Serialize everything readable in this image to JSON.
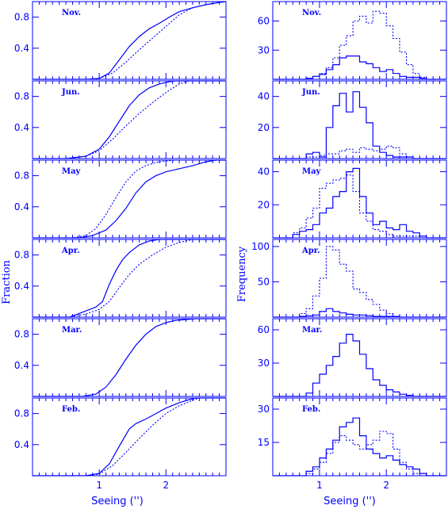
{
  "figure": {
    "colors": {
      "axis": "#0000ff",
      "series": "#0000ff",
      "background": "#ffffff"
    },
    "left_ylabel": "Fraction",
    "right_ylabel": "Frequency",
    "left_xlabel": "Seeing ('')",
    "right_xlabel": "Seeing ('')"
  },
  "chart_data": [
    {
      "type": "line",
      "panel": "Nov.",
      "column": "left",
      "xlim": [
        0,
        2.9
      ],
      "ylim": [
        0,
        1.0
      ],
      "yticks": [
        0.4,
        0.8
      ],
      "ytick_labels": [
        "0.4",
        "0.8"
      ],
      "xticks": [
        1,
        2
      ],
      "xtick_labels": [
        "",
        ""
      ],
      "series": [
        {
          "style": "solid",
          "x": [
            0.8,
            1.0,
            1.15,
            1.3,
            1.45,
            1.6,
            1.75,
            1.9,
            2.05,
            2.2,
            2.4,
            2.6,
            2.8,
            2.9
          ],
          "y": [
            0,
            0.01,
            0.08,
            0.25,
            0.42,
            0.55,
            0.65,
            0.72,
            0.8,
            0.87,
            0.92,
            0.96,
            0.99,
            1.0
          ]
        },
        {
          "style": "dotted",
          "x": [
            0.8,
            1.0,
            1.2,
            1.4,
            1.6,
            1.8,
            2.0,
            2.2,
            2.4,
            2.6,
            2.8,
            2.9
          ],
          "y": [
            0,
            0.01,
            0.08,
            0.22,
            0.38,
            0.53,
            0.68,
            0.83,
            0.92,
            0.96,
            0.99,
            1.0
          ]
        }
      ]
    },
    {
      "type": "line",
      "panel": "Jun.",
      "column": "left",
      "xlim": [
        0,
        2.9
      ],
      "ylim": [
        0,
        1.0
      ],
      "yticks": [
        0.4,
        0.8
      ],
      "ytick_labels": [
        "0.4",
        "0.8"
      ],
      "xticks": [
        1,
        2
      ],
      "xtick_labels": [
        "",
        ""
      ],
      "series": [
        {
          "style": "solid",
          "x": [
            0.5,
            0.8,
            1.0,
            1.15,
            1.3,
            1.45,
            1.6,
            1.75,
            1.9,
            2.05,
            2.15
          ],
          "y": [
            0,
            0.03,
            0.12,
            0.28,
            0.48,
            0.68,
            0.82,
            0.91,
            0.96,
            0.99,
            1.0
          ]
        },
        {
          "style": "dotted",
          "x": [
            0.5,
            0.8,
            1.0,
            1.2,
            1.4,
            1.6,
            1.8,
            2.0,
            2.2,
            2.35
          ],
          "y": [
            0,
            0.03,
            0.1,
            0.25,
            0.42,
            0.58,
            0.72,
            0.85,
            0.96,
            1.0
          ]
        }
      ]
    },
    {
      "type": "line",
      "panel": "May",
      "column": "left",
      "xlim": [
        0,
        2.9
      ],
      "ylim": [
        0,
        1.0
      ],
      "yticks": [
        0.4,
        0.8
      ],
      "ytick_labels": [
        "0.4",
        "0.8"
      ],
      "xticks": [
        1,
        2
      ],
      "xtick_labels": [
        "",
        ""
      ],
      "series": [
        {
          "style": "solid",
          "x": [
            0.7,
            0.9,
            1.1,
            1.25,
            1.4,
            1.55,
            1.7,
            1.85,
            2.0,
            2.2,
            2.4,
            2.6,
            2.75
          ],
          "y": [
            0,
            0.03,
            0.1,
            0.22,
            0.38,
            0.58,
            0.72,
            0.8,
            0.85,
            0.89,
            0.93,
            0.98,
            1.0
          ]
        },
        {
          "style": "dotted",
          "x": [
            0.6,
            0.8,
            0.95,
            1.1,
            1.25,
            1.4,
            1.55,
            1.7,
            1.85,
            2.0,
            2.15
          ],
          "y": [
            0,
            0.03,
            0.12,
            0.3,
            0.52,
            0.72,
            0.86,
            0.93,
            0.97,
            0.99,
            1.0
          ]
        }
      ]
    },
    {
      "type": "line",
      "panel": "Apr.",
      "column": "left",
      "xlim": [
        0,
        2.9
      ],
      "ylim": [
        0,
        1.0
      ],
      "yticks": [
        0.4,
        0.8
      ],
      "ytick_labels": [
        "0.4",
        "0.8"
      ],
      "xticks": [
        1,
        2
      ],
      "xtick_labels": [
        "",
        ""
      ],
      "series": [
        {
          "style": "solid",
          "x": [
            0.55,
            0.8,
            0.95,
            1.05,
            1.15,
            1.25,
            1.35,
            1.45,
            1.6,
            1.75,
            1.9
          ],
          "y": [
            0,
            0.08,
            0.13,
            0.2,
            0.42,
            0.6,
            0.74,
            0.83,
            0.93,
            0.98,
            1.0
          ]
        },
        {
          "style": "dotted",
          "x": [
            0.55,
            0.8,
            1.0,
            1.15,
            1.3,
            1.45,
            1.6,
            1.8,
            2.0,
            2.2,
            2.4
          ],
          "y": [
            0,
            0.04,
            0.1,
            0.2,
            0.38,
            0.55,
            0.68,
            0.8,
            0.9,
            0.96,
            1.0
          ]
        }
      ]
    },
    {
      "type": "line",
      "panel": "Mar.",
      "column": "left",
      "xlim": [
        0,
        2.9
      ],
      "ylim": [
        0,
        1.0
      ],
      "yticks": [
        0.4,
        0.8
      ],
      "ytick_labels": [
        "0.4",
        "0.8"
      ],
      "xticks": [
        1,
        2
      ],
      "xtick_labels": [
        "",
        ""
      ],
      "series": [
        {
          "style": "solid",
          "x": [
            0.75,
            0.95,
            1.1,
            1.25,
            1.4,
            1.55,
            1.7,
            1.85,
            2.0,
            2.15,
            2.3,
            2.45
          ],
          "y": [
            0,
            0.03,
            0.12,
            0.28,
            0.48,
            0.66,
            0.8,
            0.9,
            0.95,
            0.98,
            0.99,
            1.0
          ]
        }
      ]
    },
    {
      "type": "line",
      "panel": "Feb.",
      "column": "left",
      "xlim": [
        0,
        2.9
      ],
      "ylim": [
        0,
        1.0
      ],
      "yticks": [
        0.4,
        0.8
      ],
      "ytick_labels": [
        "0.4",
        "0.8"
      ],
      "xticks": [
        1,
        2
      ],
      "xtick_labels": [
        "1",
        "2"
      ],
      "series": [
        {
          "style": "solid",
          "x": [
            0.8,
            1.0,
            1.15,
            1.3,
            1.45,
            1.55,
            1.7,
            1.85,
            2.0,
            2.2,
            2.35,
            2.45
          ],
          "y": [
            0,
            0.03,
            0.15,
            0.38,
            0.6,
            0.67,
            0.73,
            0.8,
            0.87,
            0.94,
            0.98,
            1.0
          ]
        },
        {
          "style": "dotted",
          "x": [
            0.8,
            1.0,
            1.2,
            1.4,
            1.6,
            1.8,
            2.0,
            2.2,
            2.4,
            2.5
          ],
          "y": [
            0,
            0.02,
            0.13,
            0.3,
            0.48,
            0.65,
            0.8,
            0.9,
            0.97,
            1.0
          ]
        }
      ]
    },
    {
      "type": "bar",
      "panel": "Nov.",
      "column": "right",
      "xlim": [
        0.3,
        2.9
      ],
      "ylim": [
        0,
        80
      ],
      "yticks": [
        30,
        60
      ],
      "ytick_labels": [
        "30",
        "60"
      ],
      "xticks": [
        1,
        2
      ],
      "xtick_labels": [
        "",
        ""
      ],
      "bin_edges": [
        0.8,
        0.9,
        1.0,
        1.1,
        1.2,
        1.3,
        1.4,
        1.5,
        1.6,
        1.7,
        1.8,
        1.9,
        2.0,
        2.1,
        2.2,
        2.3,
        2.4,
        2.5,
        2.6
      ],
      "series": [
        {
          "style": "solid",
          "values": [
            1,
            3,
            5,
            10,
            15,
            22,
            24,
            24,
            18,
            16,
            12,
            8,
            10,
            6,
            3,
            2,
            2,
            1
          ]
        },
        {
          "style": "dotted",
          "values": [
            1,
            3,
            6,
            12,
            22,
            35,
            45,
            60,
            65,
            58,
            70,
            68,
            55,
            42,
            28,
            15,
            6,
            2
          ]
        }
      ]
    },
    {
      "type": "bar",
      "panel": "Jun.",
      "column": "right",
      "xlim": [
        0.3,
        2.9
      ],
      "ylim": [
        0,
        50
      ],
      "yticks": [
        20,
        40
      ],
      "ytick_labels": [
        "20",
        "40"
      ],
      "xticks": [
        1,
        2
      ],
      "xtick_labels": [
        "",
        ""
      ],
      "bin_edges": [
        0.8,
        0.9,
        1.0,
        1.1,
        1.2,
        1.3,
        1.4,
        1.5,
        1.6,
        1.7,
        1.8,
        1.9,
        2.0,
        2.1,
        2.2,
        2.3,
        2.4
      ],
      "series": [
        {
          "style": "solid",
          "values": [
            3,
            4,
            1,
            20,
            34,
            42,
            30,
            43,
            33,
            23,
            8,
            4,
            2,
            1,
            1,
            1
          ]
        },
        {
          "style": "dotted",
          "values": [
            1,
            1,
            2,
            3,
            3,
            5,
            6,
            4,
            7,
            6,
            5,
            6,
            8,
            7,
            3,
            1
          ]
        }
      ]
    },
    {
      "type": "bar",
      "panel": "May",
      "column": "right",
      "xlim": [
        0.3,
        2.9
      ],
      "ylim": [
        0,
        47
      ],
      "yticks": [
        20,
        40
      ],
      "ytick_labels": [
        "20",
        "40"
      ],
      "xticks": [
        1,
        2
      ],
      "xtick_labels": [
        "",
        ""
      ],
      "bin_edges": [
        0.6,
        0.7,
        0.8,
        0.9,
        1.0,
        1.1,
        1.2,
        1.3,
        1.4,
        1.5,
        1.6,
        1.7,
        1.8,
        1.9,
        2.0,
        2.1,
        2.2,
        2.3,
        2.4,
        2.5,
        2.6
      ],
      "series": [
        {
          "style": "solid",
          "values": [
            2,
            4,
            5,
            8,
            15,
            18,
            25,
            28,
            40,
            42,
            25,
            15,
            8,
            10,
            6,
            5,
            8,
            4,
            3,
            1
          ]
        },
        {
          "style": "dotted",
          "values": [
            3,
            6,
            12,
            18,
            30,
            33,
            35,
            36,
            38,
            28,
            15,
            10,
            5,
            4,
            2,
            1,
            1,
            1,
            1,
            1
          ]
        }
      ]
    },
    {
      "type": "bar",
      "panel": "Apr.",
      "column": "right",
      "xlim": [
        0.3,
        2.9
      ],
      "ylim": [
        0,
        110
      ],
      "yticks": [
        50,
        100
      ],
      "ytick_labels": [
        "50",
        "100"
      ],
      "xticks": [
        1,
        2
      ],
      "xtick_labels": [
        "",
        ""
      ],
      "bin_edges": [
        0.7,
        0.8,
        0.9,
        1.0,
        1.1,
        1.2,
        1.3,
        1.4,
        1.5,
        1.6,
        1.7,
        1.8,
        1.9,
        2.0,
        2.1,
        2.2
      ],
      "series": [
        {
          "style": "solid",
          "values": [
            1,
            2,
            3,
            8,
            12,
            8,
            6,
            4,
            3,
            3,
            2,
            1,
            1,
            1,
            1
          ]
        },
        {
          "style": "dotted",
          "values": [
            5,
            12,
            30,
            55,
            100,
            95,
            75,
            65,
            40,
            35,
            25,
            18,
            10,
            5,
            1
          ]
        }
      ]
    },
    {
      "type": "bar",
      "panel": "Mar.",
      "column": "right",
      "xlim": [
        0.3,
        2.9
      ],
      "ylim": [
        0,
        70
      ],
      "yticks": [
        30,
        60
      ],
      "ytick_labels": [
        "30",
        "60"
      ],
      "xticks": [
        1,
        2
      ],
      "xtick_labels": [
        "",
        ""
      ],
      "bin_edges": [
        0.8,
        0.9,
        1.0,
        1.1,
        1.2,
        1.3,
        1.4,
        1.5,
        1.6,
        1.7,
        1.8,
        1.9,
        2.0,
        2.1,
        2.2,
        2.3,
        2.4
      ],
      "series": [
        {
          "style": "solid",
          "values": [
            3,
            12,
            20,
            28,
            36,
            48,
            56,
            50,
            38,
            25,
            15,
            10,
            6,
            4,
            2,
            1
          ]
        }
      ]
    },
    {
      "type": "bar",
      "panel": "Feb.",
      "column": "right",
      "xlim": [
        0.3,
        2.9
      ],
      "ylim": [
        0,
        35
      ],
      "yticks": [
        15,
        30
      ],
      "ytick_labels": [
        "15",
        "30"
      ],
      "xticks": [
        1,
        2
      ],
      "xtick_labels": [
        "1",
        "2"
      ],
      "bin_edges": [
        0.8,
        0.9,
        1.0,
        1.1,
        1.2,
        1.3,
        1.4,
        1.5,
        1.6,
        1.7,
        1.8,
        1.9,
        2.0,
        2.1,
        2.2,
        2.3,
        2.4,
        2.5,
        2.6
      ],
      "series": [
        {
          "style": "solid",
          "values": [
            2,
            4,
            8,
            12,
            16,
            22,
            24,
            26,
            18,
            12,
            10,
            8,
            9,
            7,
            5,
            4,
            3,
            1
          ]
        },
        {
          "style": "dotted",
          "values": [
            1,
            3,
            6,
            10,
            15,
            18,
            16,
            14,
            12,
            14,
            16,
            20,
            19,
            12,
            6,
            3,
            1,
            1
          ]
        }
      ]
    }
  ]
}
